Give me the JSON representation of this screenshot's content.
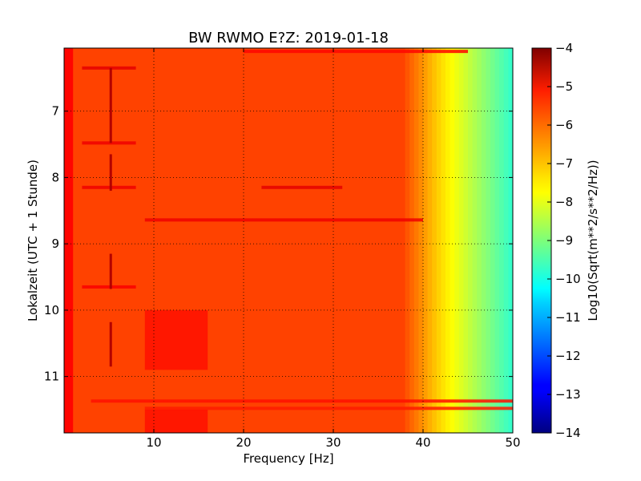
{
  "chart_data": {
    "type": "heatmap",
    "title": "BW RWMO E?Z: 2019-01-18",
    "xlabel": "Frequency [Hz]",
    "ylabel": "Lokalzeit (UTC + 1 Stunde)",
    "xlim": [
      0,
      50
    ],
    "ylim": [
      11.85,
      6.05
    ],
    "x_ticks": [
      10,
      20,
      30,
      40,
      50
    ],
    "x_tick_labels": [
      "10",
      "20",
      "30",
      "40",
      "50"
    ],
    "y_ticks": [
      7,
      8,
      9,
      10,
      11
    ],
    "y_tick_labels": [
      "7",
      "8",
      "9",
      "10",
      "11"
    ],
    "grid": true,
    "colorbar": {
      "label": "Log10(Sqrt(m**2/s**2/Hz))",
      "range": [
        -14,
        -4
      ],
      "ticks": [
        -4,
        -5,
        -6,
        -7,
        -8,
        -9,
        -10,
        -11,
        -12,
        -13,
        -14
      ],
      "tick_labels": [
        "−4",
        "−5",
        "−6",
        "−7",
        "−8",
        "−9",
        "−10",
        "−11",
        "−12",
        "−13",
        "−14"
      ],
      "colormap": "jet"
    },
    "background_level": -5.9,
    "low_freq_edge": {
      "x_range": [
        0,
        1
      ],
      "value": -5.3
    },
    "high_freq_rolloff": [
      {
        "x": 38,
        "value": -6.0
      },
      {
        "x": 40,
        "value": -6.7
      },
      {
        "x": 42,
        "value": -7.4
      },
      {
        "x": 44,
        "value": -8.0
      },
      {
        "x": 46,
        "value": -8.6
      },
      {
        "x": 48,
        "value": -9.2
      },
      {
        "x": 50,
        "value": -9.8
      }
    ],
    "features": [
      {
        "kind": "horizontal-band",
        "y": 6.1,
        "x_range": [
          20,
          45
        ],
        "value": -5.3
      },
      {
        "kind": "horizontal-band",
        "y": 6.35,
        "x_range": [
          2,
          8
        ],
        "value": -5.0
      },
      {
        "kind": "horizontal-band",
        "y": 7.48,
        "x_range": [
          2,
          8
        ],
        "value": -5.1
      },
      {
        "kind": "horizontal-band",
        "y": 8.15,
        "x_range": [
          2,
          8
        ],
        "value": -5.1
      },
      {
        "kind": "horizontal-band",
        "y": 8.15,
        "x_range": [
          22,
          31
        ],
        "value": -5.0
      },
      {
        "kind": "horizontal-band",
        "y": 8.64,
        "x_range": [
          9,
          40
        ],
        "value": -5.1
      },
      {
        "kind": "horizontal-band",
        "y": 9.65,
        "x_range": [
          2,
          8
        ],
        "value": -5.2
      },
      {
        "kind": "horizontal-band",
        "y": 11.37,
        "x_range": [
          3,
          50
        ],
        "value": -5.4
      },
      {
        "kind": "horizontal-band",
        "y": 11.48,
        "x_range": [
          9,
          50
        ],
        "value": -5.5
      },
      {
        "kind": "vertical-line",
        "x": 5.2,
        "y_range": [
          6.35,
          7.48
        ],
        "value": -4.5
      },
      {
        "kind": "vertical-line",
        "x": 5.2,
        "y_range": [
          7.65,
          8.2
        ],
        "value": -4.5
      },
      {
        "kind": "vertical-line",
        "x": 5.2,
        "y_range": [
          9.15,
          9.68
        ],
        "value": -4.5
      },
      {
        "kind": "vertical-line",
        "x": 5.2,
        "y_range": [
          10.18,
          10.85
        ],
        "value": -4.5
      },
      {
        "kind": "patch",
        "x_range": [
          9,
          16
        ],
        "y_range": [
          10.0,
          10.9
        ],
        "value": -5.3
      },
      {
        "kind": "patch",
        "x_range": [
          9,
          16
        ],
        "y_range": [
          11.5,
          11.85
        ],
        "value": -5.3
      }
    ]
  }
}
